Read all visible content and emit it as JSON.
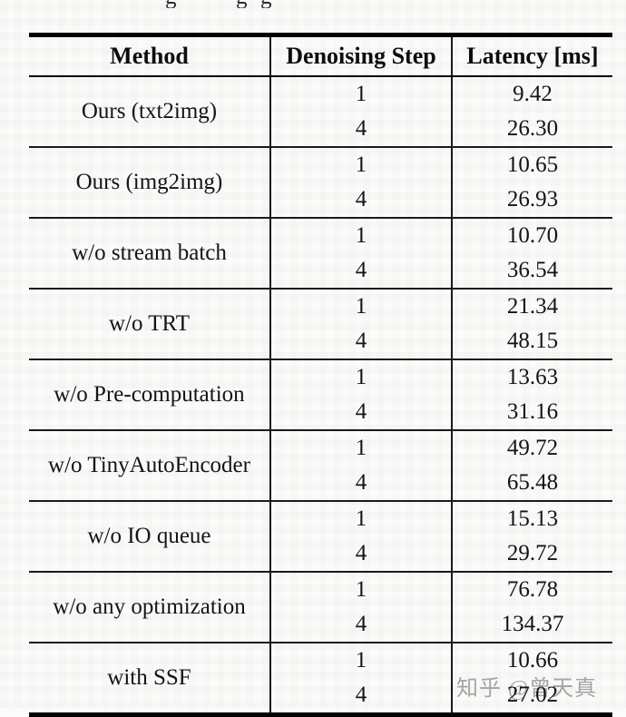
{
  "page": {
    "watermark_text": "知乎 @曾天真",
    "caption_fragments": [
      "g",
      "g",
      "g"
    ],
    "colors": {
      "background": "#fbfbfa",
      "text": "#141414",
      "rule": "#000000",
      "watermark": "#aaa9a8"
    }
  },
  "chart_data": {
    "type": "table",
    "title": "",
    "columns": [
      "Method",
      "Denoising Step",
      "Latency [ms]"
    ],
    "rows": [
      {
        "method": "Ours (txt2img)",
        "entries": [
          {
            "step": "1",
            "latency_ms": "9.42"
          },
          {
            "step": "4",
            "latency_ms": "26.30"
          }
        ]
      },
      {
        "method": "Ours (img2img)",
        "entries": [
          {
            "step": "1",
            "latency_ms": "10.65"
          },
          {
            "step": "4",
            "latency_ms": "26.93"
          }
        ]
      },
      {
        "method": "w/o stream batch",
        "entries": [
          {
            "step": "1",
            "latency_ms": "10.70"
          },
          {
            "step": "4",
            "latency_ms": "36.54"
          }
        ]
      },
      {
        "method": "w/o TRT",
        "entries": [
          {
            "step": "1",
            "latency_ms": "21.34"
          },
          {
            "step": "4",
            "latency_ms": "48.15"
          }
        ]
      },
      {
        "method": "w/o Pre-computation",
        "entries": [
          {
            "step": "1",
            "latency_ms": "13.63"
          },
          {
            "step": "4",
            "latency_ms": "31.16"
          }
        ]
      },
      {
        "method": "w/o TinyAutoEncoder",
        "entries": [
          {
            "step": "1",
            "latency_ms": "49.72"
          },
          {
            "step": "4",
            "latency_ms": "65.48"
          }
        ]
      },
      {
        "method": "w/o IO queue",
        "entries": [
          {
            "step": "1",
            "latency_ms": "15.13"
          },
          {
            "step": "4",
            "latency_ms": "29.72"
          }
        ]
      },
      {
        "method": "w/o any optimization",
        "entries": [
          {
            "step": "1",
            "latency_ms": "76.78"
          },
          {
            "step": "4",
            "latency_ms": "134.37"
          }
        ]
      },
      {
        "method": "with SSF",
        "entries": [
          {
            "step": "1",
            "latency_ms": "10.66"
          },
          {
            "step": "4",
            "latency_ms": "27.02"
          }
        ]
      }
    ]
  }
}
